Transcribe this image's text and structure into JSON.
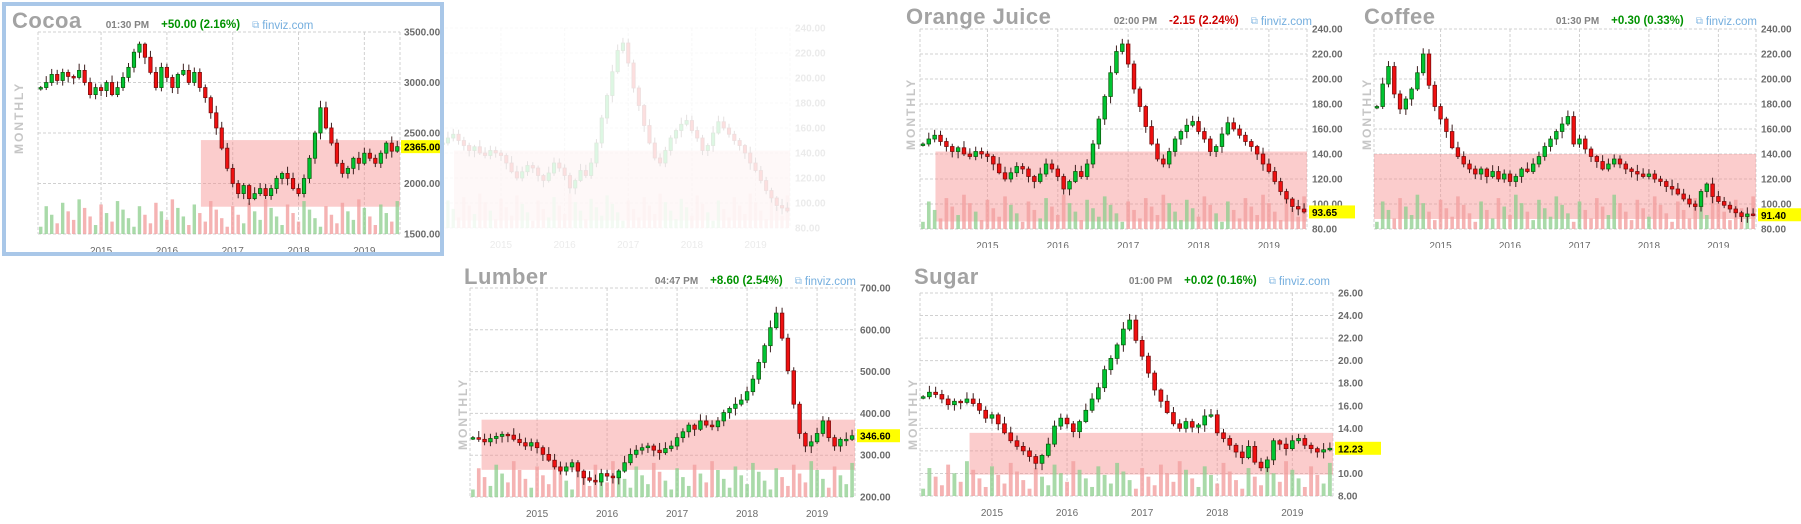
{
  "page": {
    "background": "#ffffff",
    "source_site_label": "finviz.com"
  },
  "colors": {
    "up_candle": "#00c432",
    "up_candle_border": "#0a5a0a",
    "down_candle": "#ef1010",
    "down_candle_border": "#7a0a0a",
    "wick": "#3c1f1f",
    "support_band": "rgba(247,141,141,0.45)",
    "vol_up": "rgba(140,205,140,0.75)",
    "vol_down": "rgba(242,160,160,0.8)",
    "grid": "#d0d0d0",
    "tick_text": "#6b6b6b",
    "price_tag_bg": "#ffff00",
    "price_tag_text": "#000000",
    "title_gray": "#a3a3a3",
    "change_up": "#009200",
    "change_down": "#cc0000",
    "link_blue": "#74aede",
    "selected_border": "#a9c7e8",
    "timeframe_gray": "#c6c6c6"
  },
  "charts": [
    {
      "id": "cocoa",
      "title": "Cocoa",
      "time": "01:30 PM",
      "change": "+50.00 (2.16%)",
      "change_dir": "up",
      "link": "finviz.com",
      "link_icon": "⧉",
      "timeframe_label": "MONTHLY",
      "selected": true,
      "chart_data": {
        "type": "candlestick",
        "ylim": [
          1500,
          3500
        ],
        "yticks": [
          3500,
          3000,
          2500,
          2000,
          1500
        ],
        "ytick_labels": [
          "3500.00",
          "3000.00",
          "2500.00",
          "2000.00",
          "1500.00"
        ],
        "last_price": 2365,
        "last_price_label": "2365.00",
        "years": [
          "2015",
          "2016",
          "2017",
          "2018",
          "2019"
        ],
        "first_jan_index": 11,
        "grid": true,
        "legend": "none",
        "support_band": {
          "low": 1770,
          "high": 2430,
          "start_frac": 0.45
        },
        "closes": [
          2950,
          3000,
          3080,
          3020,
          3100,
          3060,
          3050,
          3120,
          3000,
          2880,
          2950,
          2920,
          3000,
          2880,
          2950,
          3050,
          3150,
          3300,
          3380,
          3250,
          3100,
          2950,
          3150,
          3050,
          2950,
          3080,
          3120,
          3000,
          3100,
          2950,
          2850,
          2700,
          2550,
          2350,
          2150,
          2000,
          1900,
          1980,
          1850,
          1900,
          1950,
          1880,
          1950,
          2050,
          2100,
          2050,
          1950,
          1900,
          2050,
          2250,
          2500,
          2750,
          2550,
          2400,
          2200,
          2100,
          2150,
          2250,
          2200,
          2300,
          2250,
          2200,
          2300,
          2400,
          2320,
          2365
        ]
      }
    },
    {
      "id": "orange-juice",
      "title": "Orange Juice",
      "time": "02:00 PM",
      "change": "-2.15 (2.24%)",
      "change_dir": "down",
      "link": "finviz.com",
      "link_icon": "⧉",
      "timeframe_label": "MONTHLY",
      "selected": false,
      "chart_data": {
        "type": "candlestick",
        "ylim": [
          80,
          240
        ],
        "yticks": [
          240,
          220,
          200,
          180,
          160,
          140,
          120,
          100,
          80
        ],
        "ytick_labels": [
          "240.00",
          "220.00",
          "200.00",
          "180.00",
          "160.00",
          "140.00",
          "120.00",
          "100.00",
          "80.00"
        ],
        "last_price": 93.65,
        "last_price_label": "93.65",
        "years": [
          "2015",
          "2016",
          "2017",
          "2018",
          "2019"
        ],
        "first_jan_index": 11,
        "grid": true,
        "legend": "none",
        "support_band": {
          "low": 86,
          "high": 142,
          "start_frac": 0.04
        },
        "closes": [
          148,
          152,
          155,
          150,
          146,
          142,
          145,
          140,
          138,
          142,
          140,
          138,
          132,
          125,
          120,
          125,
          130,
          128,
          122,
          118,
          124,
          132,
          128,
          122,
          112,
          118,
          126,
          122,
          132,
          148,
          168,
          186,
          205,
          222,
          228,
          212,
          192,
          178,
          162,
          148,
          136,
          132,
          142,
          152,
          158,
          163,
          166,
          158,
          152,
          142,
          146,
          156,
          165,
          160,
          155,
          150,
          146,
          140,
          132,
          126,
          118,
          110,
          104,
          98,
          96,
          93.65
        ]
      }
    },
    {
      "id": "coffee",
      "title": "Coffee",
      "time": "01:30 PM",
      "change": "+0.30 (0.33%)",
      "change_dir": "up",
      "link": "finviz.com",
      "link_icon": "⧉",
      "timeframe_label": "MONTHLY",
      "selected": false,
      "chart_data": {
        "type": "candlestick",
        "ylim": [
          80,
          240
        ],
        "yticks": [
          240,
          220,
          200,
          180,
          160,
          140,
          120,
          100,
          80
        ],
        "ytick_labels": [
          "240.00",
          "220.00",
          "200.00",
          "180.00",
          "160.00",
          "140.00",
          "120.00",
          "100.00",
          "80.00"
        ],
        "last_price": 91.4,
        "last_price_label": "91.40",
        "years": [
          "2015",
          "2016",
          "2017",
          "2018",
          "2019"
        ],
        "first_jan_index": 11,
        "grid": true,
        "legend": "none",
        "support_band": {
          "low": 88,
          "high": 140,
          "start_frac": 0.0
        },
        "closes": [
          178,
          196,
          210,
          188,
          176,
          184,
          192,
          205,
          220,
          195,
          178,
          168,
          158,
          145,
          138,
          132,
          128,
          124,
          128,
          122,
          126,
          120,
          124,
          118,
          122,
          128,
          126,
          132,
          138,
          146,
          152,
          158,
          164,
          170,
          148,
          152,
          144,
          138,
          134,
          128,
          132,
          136,
          132,
          128,
          126,
          124,
          122,
          124,
          120,
          118,
          114,
          112,
          108,
          104,
          100,
          98,
          110,
          116,
          106,
          102,
          99,
          96,
          93,
          90,
          92,
          91.4
        ]
      }
    },
    {
      "id": "lumber",
      "title": "Lumber",
      "time": "04:47 PM",
      "change": "+8.60 (2.54%)",
      "change_dir": "up",
      "link": "finviz.com",
      "link_icon": "⧉",
      "timeframe_label": "MONTHLY",
      "selected": false,
      "chart_data": {
        "type": "candlestick",
        "ylim": [
          200,
          700
        ],
        "yticks": [
          700,
          600,
          500,
          400,
          300,
          200
        ],
        "ytick_labels": [
          "700.00",
          "600.00",
          "500.00",
          "400.00",
          "300.00",
          "200.00"
        ],
        "last_price": 346.6,
        "last_price_label": "346.60",
        "years": [
          "2015",
          "2016",
          "2017",
          "2018",
          "2019"
        ],
        "first_jan_index": 11,
        "grid": true,
        "legend": "none",
        "support_band": {
          "low": 265,
          "high": 385,
          "start_frac": 0.03
        },
        "closes": [
          342,
          338,
          332,
          340,
          345,
          350,
          348,
          338,
          330,
          322,
          330,
          318,
          302,
          288,
          272,
          262,
          272,
          282,
          262,
          246,
          240,
          236,
          256,
          250,
          246,
          262,
          282,
          302,
          312,
          318,
          322,
          312,
          306,
          316,
          322,
          342,
          356,
          372,
          362,
          382,
          372,
          368,
          382,
          402,
          412,
          422,
          432,
          452,
          482,
          522,
          562,
          605,
          640,
          580,
          502,
          422,
          352,
          322,
          332,
          352,
          382,
          342,
          322,
          338,
          338,
          346.6
        ]
      }
    },
    {
      "id": "sugar",
      "title": "Sugar",
      "time": "01:00 PM",
      "change": "+0.02 (0.16%)",
      "change_dir": "up",
      "link": "finviz.com",
      "link_icon": "⧉",
      "timeframe_label": "MONTHLY",
      "selected": false,
      "chart_data": {
        "type": "candlestick",
        "ylim": [
          8,
          26
        ],
        "yticks": [
          26,
          24,
          22,
          20,
          18,
          16,
          14,
          12,
          10,
          8
        ],
        "ytick_labels": [
          "26.00",
          "24.00",
          "22.00",
          "20.00",
          "18.00",
          "16.00",
          "14.00",
          "12.00",
          "10.00",
          "8.00"
        ],
        "last_price": 12.23,
        "last_price_label": "12.23",
        "years": [
          "2015",
          "2016",
          "2017",
          "2018",
          "2019"
        ],
        "first_jan_index": 11,
        "grid": true,
        "legend": "none",
        "support_band": {
          "low": 9.9,
          "high": 13.6,
          "start_frac": 0.12
        },
        "closes": [
          16.8,
          17.2,
          17.0,
          16.6,
          16.1,
          16.4,
          16.3,
          16.6,
          16.2,
          15.6,
          14.9,
          15.2,
          14.4,
          13.6,
          12.9,
          12.4,
          12.0,
          11.5,
          10.9,
          11.6,
          12.6,
          14.2,
          14.9,
          14.4,
          13.7,
          14.6,
          15.6,
          16.6,
          17.6,
          19.2,
          20.2,
          21.4,
          22.8,
          23.6,
          21.8,
          20.4,
          18.9,
          17.4,
          16.4,
          15.4,
          14.4,
          14.0,
          14.6,
          14.1,
          14.3,
          15.1,
          15.2,
          13.6,
          13.1,
          12.5,
          11.9,
          11.4,
          12.4,
          11.0,
          10.5,
          11.2,
          12.9,
          12.6,
          12.2,
          12.9,
          13.1,
          12.5,
          12.2,
          11.9,
          12.1,
          12.23
        ]
      }
    }
  ],
  "ghost_chart": {
    "source": "orange-juice",
    "opacity": 0.13,
    "note": "faded duplicate chart rendering behind top row"
  }
}
